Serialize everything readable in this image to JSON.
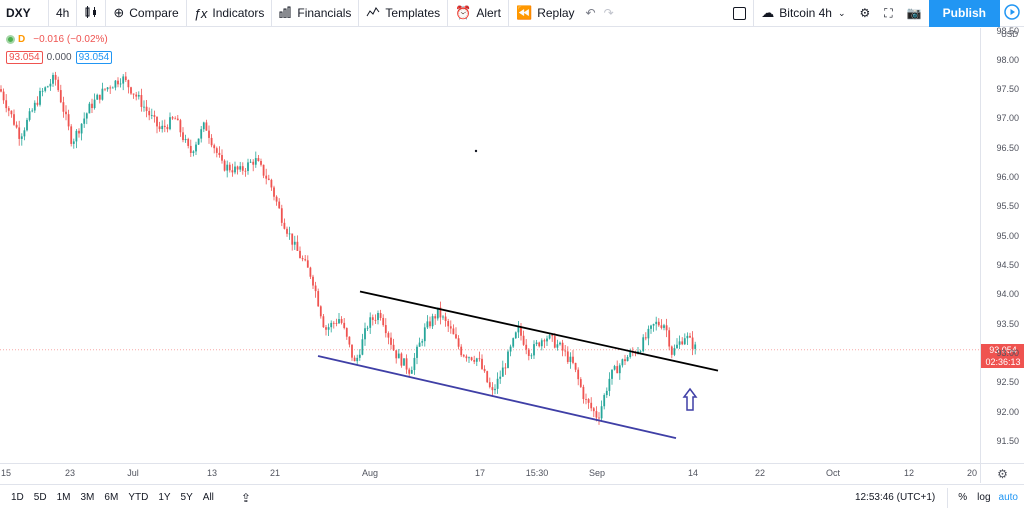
{
  "toolbar": {
    "symbol": "DXY",
    "interval": "4h",
    "compare": "Compare",
    "indicators": "Indicators",
    "financials": "Financials",
    "templates": "Templates",
    "alert": "Alert",
    "replay": "Replay",
    "layout_name": "Bitcoin 4h",
    "publish": "Publish"
  },
  "legend": {
    "badge": "D",
    "change": "−0.016 (−0.02%)",
    "sell": "93.054",
    "spread": "0.000",
    "buy": "93.054"
  },
  "price_axis": {
    "currency": "USD",
    "ticks": [
      "98.50",
      "98.00",
      "97.50",
      "97.00",
      "96.50",
      "96.00",
      "95.50",
      "95.00",
      "94.50",
      "94.00",
      "93.50",
      "93.00",
      "92.50",
      "92.00",
      "91.50"
    ],
    "current_price": "93.054",
    "countdown": "02:36:13"
  },
  "time_axis": {
    "labels": [
      "15",
      "23",
      "Jul",
      "13",
      "21",
      "Aug",
      "17",
      "15:30",
      "Sep",
      "14",
      "22",
      "Oct",
      "12",
      "20"
    ]
  },
  "bottom": {
    "ranges": [
      "1D",
      "5D",
      "1M",
      "3M",
      "6M",
      "YTD",
      "1Y",
      "5Y",
      "All"
    ],
    "clock": "12:53:46 (UTC+1)",
    "percent": "%",
    "log": "log",
    "auto": "auto"
  },
  "colors": {
    "up": "#26a69a",
    "down": "#ef5350",
    "accent": "#2196f3",
    "resistance": "#000000",
    "support": "#3f3fa6"
  },
  "chart_data": {
    "type": "candlestick",
    "symbol": "DXY",
    "interval": "4h",
    "ylim": [
      91.2,
      98.6
    ],
    "price_path": [
      [
        0,
        97.5
      ],
      [
        20,
        96.7
      ],
      [
        40,
        97.4
      ],
      [
        55,
        97.7
      ],
      [
        72,
        96.6
      ],
      [
        90,
        97.2
      ],
      [
        105,
        97.5
      ],
      [
        122,
        97.7
      ],
      [
        140,
        97.3
      ],
      [
        160,
        96.8
      ],
      [
        175,
        97.0
      ],
      [
        190,
        96.4
      ],
      [
        205,
        96.9
      ],
      [
        222,
        96.2
      ],
      [
        240,
        96.1
      ],
      [
        255,
        96.3
      ],
      [
        270,
        95.9
      ],
      [
        282,
        95.3
      ],
      [
        295,
        94.8
      ],
      [
        312,
        94.3
      ],
      [
        325,
        93.4
      ],
      [
        340,
        93.6
      ],
      [
        355,
        92.8
      ],
      [
        368,
        93.5
      ],
      [
        380,
        93.7
      ],
      [
        395,
        93.0
      ],
      [
        410,
        92.7
      ],
      [
        425,
        93.4
      ],
      [
        438,
        93.7
      ],
      [
        450,
        93.4
      ],
      [
        462,
        93.0
      ],
      [
        478,
        92.9
      ],
      [
        492,
        92.3
      ],
      [
        505,
        92.8
      ],
      [
        518,
        93.4
      ],
      [
        530,
        93.0
      ],
      [
        545,
        93.3
      ],
      [
        560,
        93.1
      ],
      [
        573,
        92.8
      ],
      [
        585,
        92.2
      ],
      [
        598,
        91.9
      ],
      [
        610,
        92.6
      ],
      [
        625,
        92.9
      ],
      [
        640,
        93.1
      ],
      [
        655,
        93.5
      ],
      [
        665,
        93.5
      ],
      [
        672,
        93.0
      ],
      [
        685,
        93.3
      ],
      [
        697,
        93.05
      ]
    ],
    "trendlines": [
      {
        "name": "resistance",
        "from": [
          360,
          94.05
        ],
        "to": [
          718,
          92.7
        ]
      },
      {
        "name": "support",
        "from": [
          318,
          92.95
        ],
        "to": [
          676,
          91.55
        ]
      }
    ],
    "annotation": "up-arrow"
  }
}
